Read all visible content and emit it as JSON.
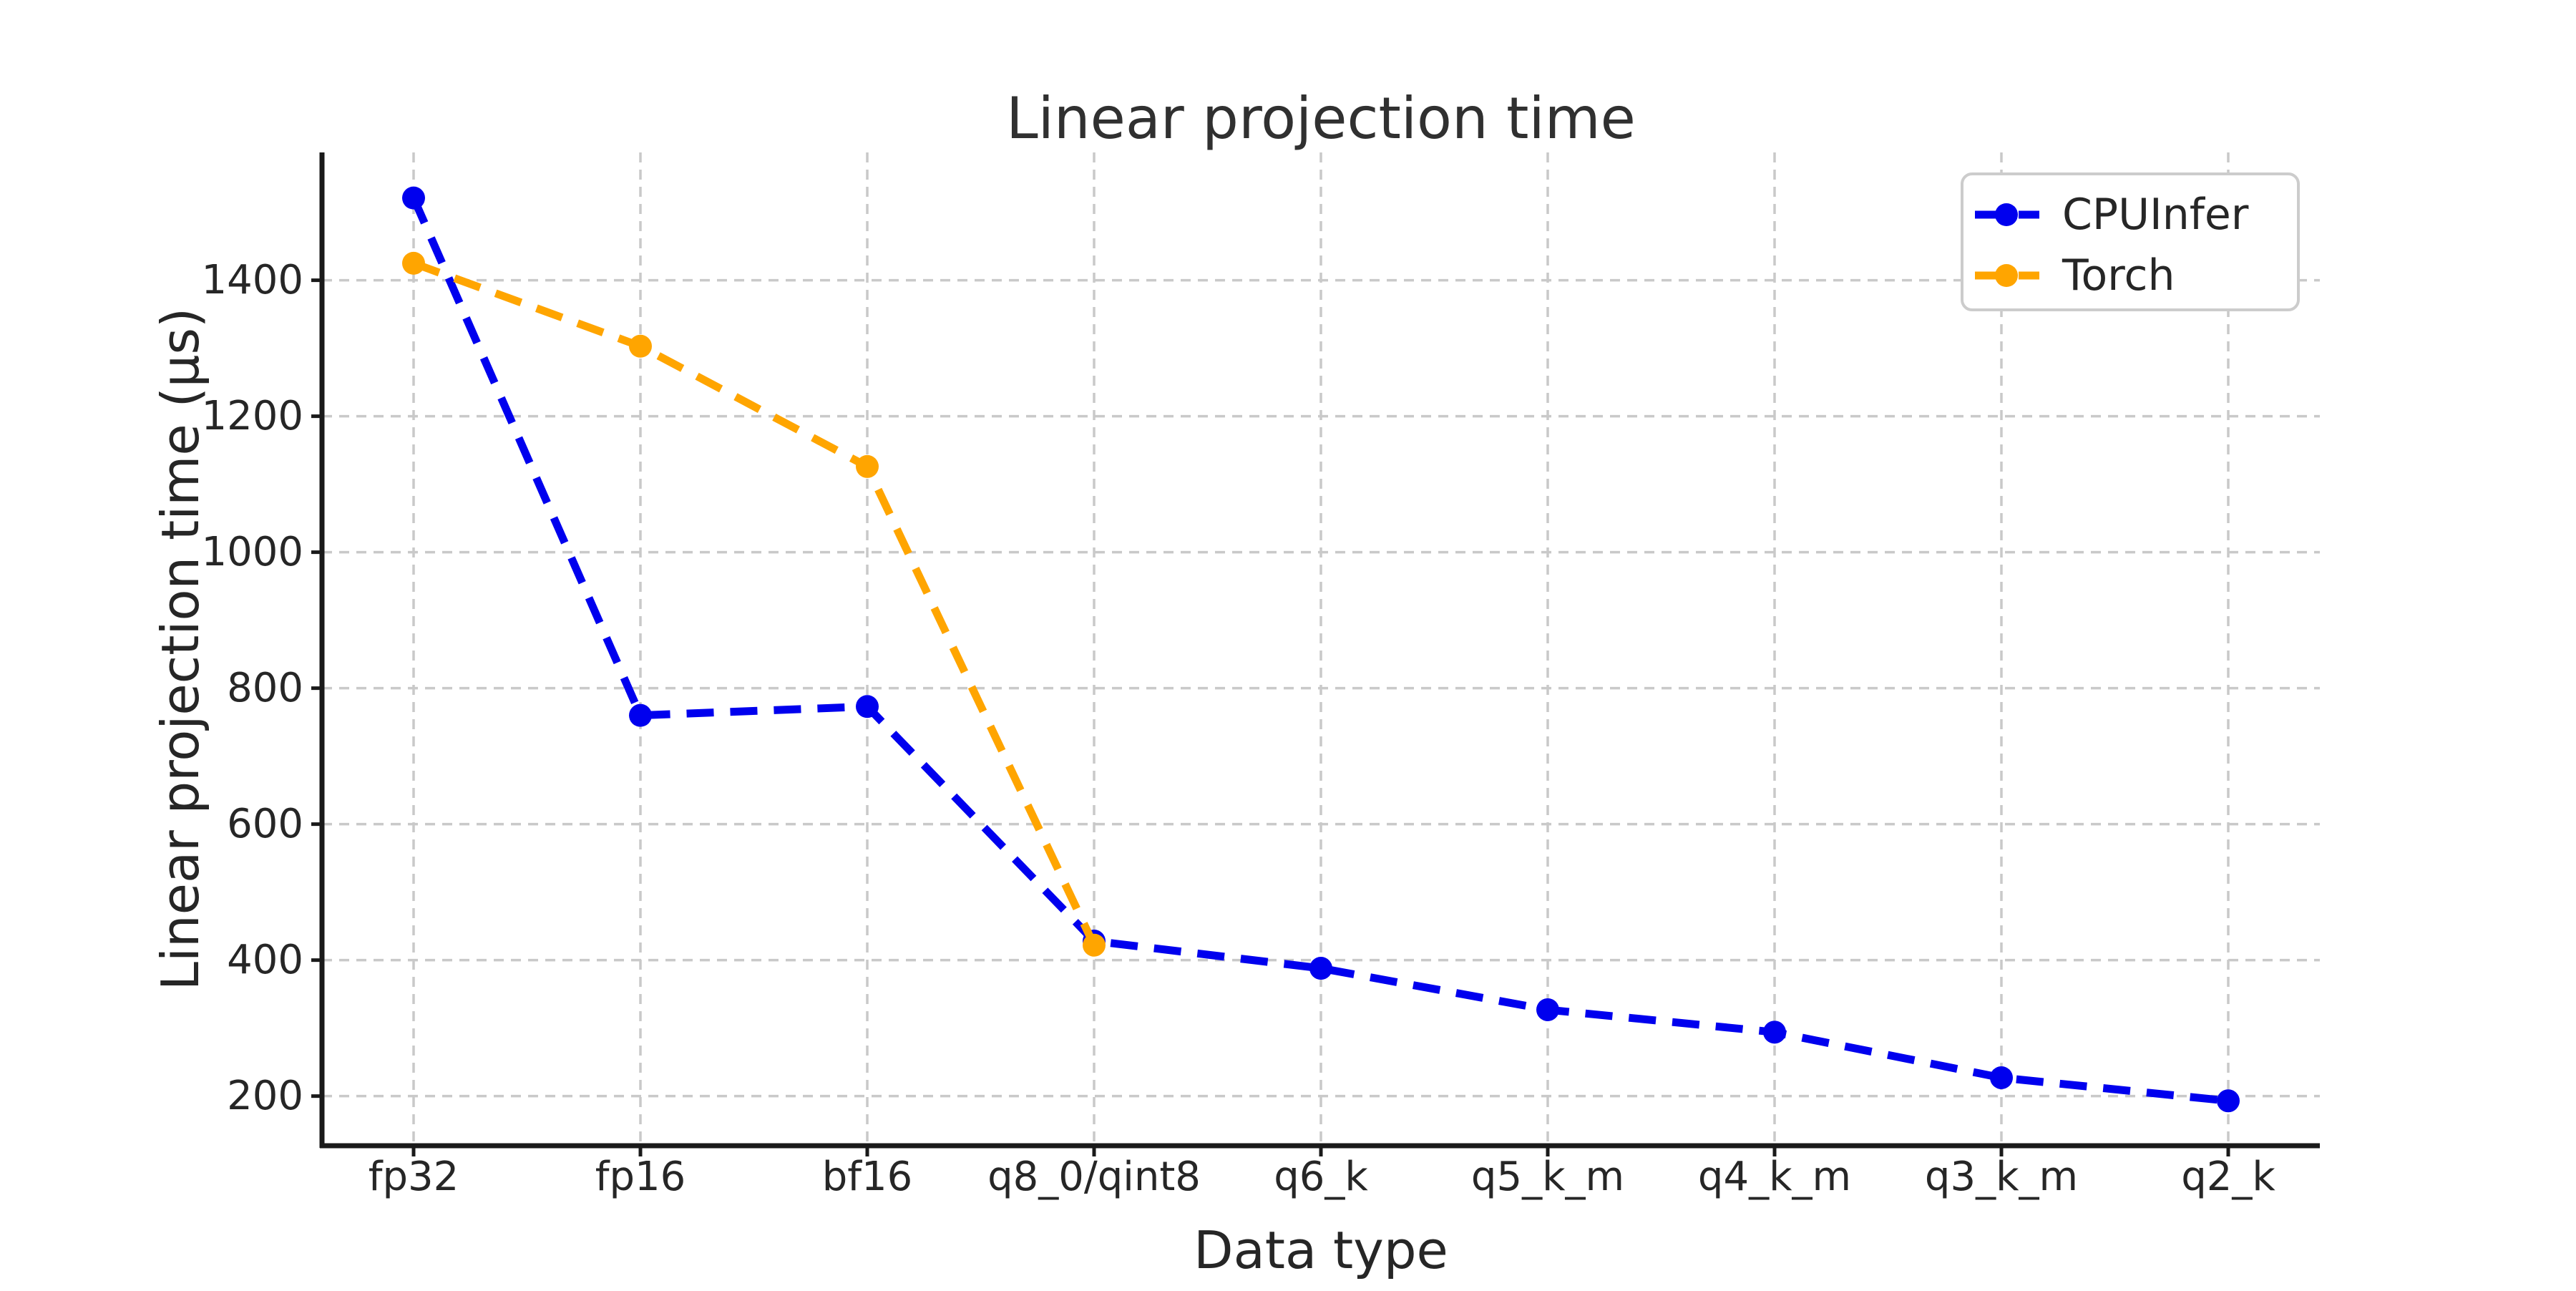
{
  "title": "Linear projection time",
  "colors": {
    "cpuinfer_blue": "#0000ee",
    "torch_orange": "#ffa500",
    "grid": "#c9c9c9",
    "spine": "#1a1a1a",
    "text": "#262626",
    "legend_border": "#cccccc",
    "background": "#ffffff"
  },
  "legend": {
    "entries": [
      "CPUInfer",
      "Torch"
    ],
    "position": "upper right"
  },
  "chart_data": {
    "type": "line",
    "title": "Linear projection time",
    "xlabel": "Data type",
    "ylabel": "Linear projection time (µs)",
    "categories": [
      "fp32",
      "fp16",
      "bf16",
      "q8_0/qint8",
      "q6_k",
      "q5_k_m",
      "q4_k_m",
      "q3_k_m",
      "q2_k"
    ],
    "series": [
      {
        "name": "CPUInfer",
        "color": "#0000ee",
        "line_style": "dashed",
        "marker": "circle",
        "values": [
          1521,
          760,
          773,
          428,
          388,
          327,
          294,
          227,
          193
        ]
      },
      {
        "name": "Torch",
        "color": "#ffa500",
        "line_style": "dashed",
        "marker": "circle",
        "values": [
          1425,
          1303,
          1126,
          422
        ]
      }
    ],
    "ylim": [
      127,
      1588
    ],
    "yticks": [
      200,
      400,
      600,
      800,
      1000,
      1200,
      1400
    ],
    "grid": true,
    "grid_style": "dashed",
    "legend_position": "upper right"
  }
}
